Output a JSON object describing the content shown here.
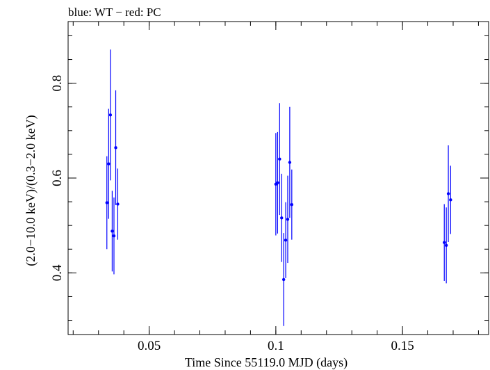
{
  "chart_data": {
    "type": "scatter",
    "title": "blue: WT − red: PC",
    "xlabel": "Time Since 55119.0 MJD (days)",
    "ylabel": "(2.0−10.0 keV)/(0.3−2.0 keV)",
    "xlim": [
      0.018,
      0.184
    ],
    "ylim": [
      0.27,
      0.93
    ],
    "xticks": [
      {
        "value": 0.05,
        "label": "0.05"
      },
      {
        "value": 0.1,
        "label": "0.1"
      },
      {
        "value": 0.15,
        "label": "0.15"
      }
    ],
    "yticks": [
      {
        "value": 0.4,
        "label": "0.4"
      },
      {
        "value": 0.6,
        "label": "0.6"
      },
      {
        "value": 0.8,
        "label": "0.8"
      }
    ],
    "x_minor_step": 0.01,
    "y_minor_step": 0.05,
    "grid": false,
    "colors": {
      "WT": "#0000ff",
      "PC": "#ff0000"
    },
    "series": [
      {
        "color": "#0000ff",
        "points": [
          {
            "x": 0.0333,
            "y": 0.548,
            "err": 0.098
          },
          {
            "x": 0.034,
            "y": 0.63,
            "err": 0.116
          },
          {
            "x": 0.0347,
            "y": 0.733,
            "err": 0.138
          },
          {
            "x": 0.0354,
            "y": 0.488,
            "err": 0.085
          },
          {
            "x": 0.0361,
            "y": 0.478,
            "err": 0.081
          },
          {
            "x": 0.0368,
            "y": 0.664,
            "err": 0.121
          },
          {
            "x": 0.0376,
            "y": 0.545,
            "err": 0.075
          },
          {
            "x": 0.1,
            "y": 0.587,
            "err": 0.108
          },
          {
            "x": 0.1007,
            "y": 0.59,
            "err": 0.107
          },
          {
            "x": 0.1015,
            "y": 0.64,
            "err": 0.118
          },
          {
            "x": 0.1023,
            "y": 0.516,
            "err": 0.093
          },
          {
            "x": 0.1031,
            "y": 0.386,
            "err": 0.098
          },
          {
            "x": 0.1039,
            "y": 0.469,
            "err": 0.08
          },
          {
            "x": 0.1047,
            "y": 0.513,
            "err": 0.092
          },
          {
            "x": 0.1055,
            "y": 0.633,
            "err": 0.117
          },
          {
            "x": 0.1063,
            "y": 0.544,
            "err": 0.074
          },
          {
            "x": 0.1665,
            "y": 0.464,
            "err": 0.081
          },
          {
            "x": 0.1673,
            "y": 0.458,
            "err": 0.08
          },
          {
            "x": 0.1681,
            "y": 0.567,
            "err": 0.102
          },
          {
            "x": 0.169,
            "y": 0.554,
            "err": 0.072
          }
        ]
      }
    ]
  }
}
